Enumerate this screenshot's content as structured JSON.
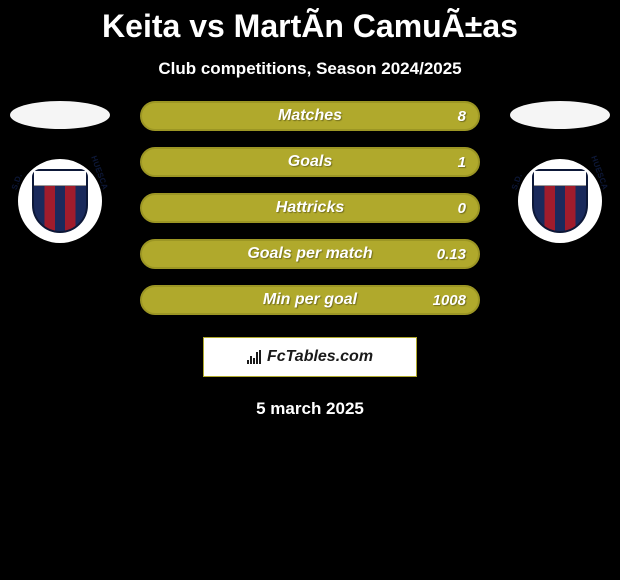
{
  "title": "Keita vs MartÃ­n CamuÃ±as",
  "subtitle": "Club competitions, Season 2024/2025",
  "date": "5 march 2025",
  "brand": "FcTables.com",
  "players": {
    "left": {
      "club_text": "S.D. HUESCA"
    },
    "right": {
      "club_text": "S.D. HUESCA"
    }
  },
  "chart": {
    "type": "comparison-bars",
    "bar_bg_color": "#b0a92c",
    "bar_border_color": "#9c9624",
    "left_fill_color": "#b0a92c",
    "right_fill_color": "#b0a92c",
    "label_color": "#ffffff",
    "label_fontsize": 16,
    "value_fontsize": 15,
    "background_color": "#000000",
    "rows": [
      {
        "label": "Matches",
        "left": "",
        "right": "8",
        "left_pct": 0,
        "right_pct": 0
      },
      {
        "label": "Goals",
        "left": "",
        "right": "1",
        "left_pct": 0,
        "right_pct": 0
      },
      {
        "label": "Hattricks",
        "left": "",
        "right": "0",
        "left_pct": 0,
        "right_pct": 0
      },
      {
        "label": "Goals per match",
        "left": "",
        "right": "0.13",
        "left_pct": 0,
        "right_pct": 0
      },
      {
        "label": "Min per goal",
        "left": "",
        "right": "1008",
        "left_pct": 0,
        "right_pct": 0
      }
    ]
  }
}
